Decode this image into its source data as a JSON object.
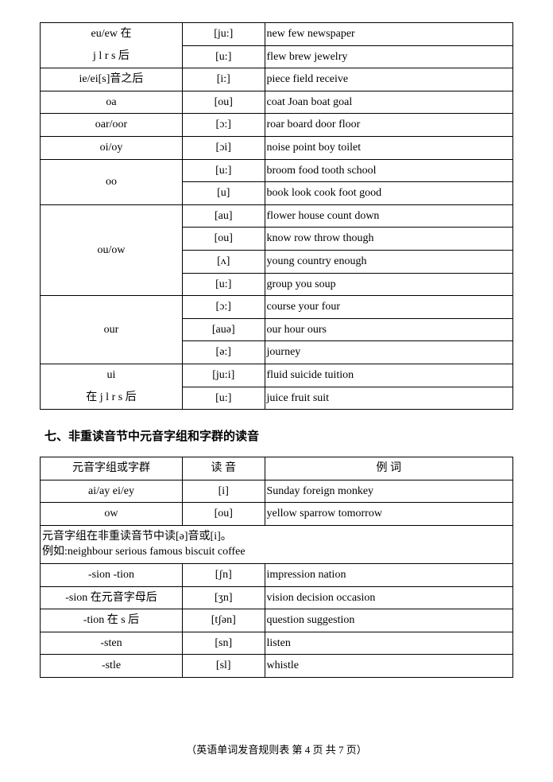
{
  "table1": {
    "rows": [
      {
        "c1": "eu/ew 在",
        "c2": "[ju:]",
        "c3": "new few newspaper",
        "rowspan": 1,
        "group": "a",
        "sub": "1"
      },
      {
        "c1": "j l r s 后",
        "c2": "[u:]",
        "c3": "flew brew jewelry",
        "rowspan": 1,
        "group": "a",
        "sub": "2"
      },
      {
        "c1": "ie/ei[s]音之后",
        "c2": "[i:]",
        "c3": "piece field receive",
        "rowspan": 1
      },
      {
        "c1": "oa",
        "c2": "[ou]",
        "c3": "coat Joan boat goal",
        "rowspan": 1
      },
      {
        "c1": "oar/oor",
        "c2": "[ɔ:]",
        "c3": "roar board door floor",
        "rowspan": 1
      },
      {
        "c1": "oi/oy",
        "c2": "[ɔi]",
        "c3": "noise point boy toilet",
        "rowspan": 1
      },
      {
        "c1": "oo",
        "c2": "[u:]",
        "c3": "broom food tooth school",
        "rowspan": 2
      },
      {
        "c2": "[u]",
        "c3": "book look cook foot good"
      },
      {
        "c1": "ou/ow",
        "c2": "[au]",
        "c3": "flower house count down",
        "rowspan": 4
      },
      {
        "c2": "[ou]",
        "c3": "know row throw though"
      },
      {
        "c2": "[ʌ]",
        "c3": "young country enough"
      },
      {
        "c2": "[u:]",
        "c3": "group you soup"
      },
      {
        "c1": "our",
        "c2": "[ɔ:]",
        "c3": "course your four",
        "rowspan": 3
      },
      {
        "c2": "[auə]",
        "c3": "our hour ours"
      },
      {
        "c2": "[ə:]",
        "c3": "journey"
      },
      {
        "c1": "ui",
        "c2": "[ju:i]",
        "c3": "fluid suicide tuition",
        "rowspan": 1,
        "group": "b",
        "sub": "1"
      },
      {
        "c1": "在 j l r s 后",
        "c2": "[u:]",
        "c3": "juice fruit suit",
        "rowspan": 1,
        "group": "b",
        "sub": "2"
      }
    ]
  },
  "sectionHeading": "七、非重读音节中元音字组和字群的读音",
  "table2": {
    "header": {
      "c1": "元音字组或字群",
      "c2": "读 音",
      "c3": "例 词"
    },
    "rows": [
      {
        "c1": "ai/ay ei/ey",
        "c2": "[i]",
        "c3": "Sunday foreign monkey"
      },
      {
        "c1": "ow",
        "c2": "[ou]",
        "c3": "yellow sparrow tomorrow"
      }
    ],
    "noteLine1": "元音字组在非重读音节中读[ə]音或[i]。",
    "noteLine2": "例如:neighbour serious famous biscuit coffee",
    "rows2": [
      {
        "c1": "-sion -tion",
        "c2": "[ʃn]",
        "c3": "impression nation"
      },
      {
        "c1": "-sion 在元音字母后",
        "c2": "[ʒn]",
        "c3": "vision decision occasion"
      },
      {
        "c1": "-tion 在 s 后",
        "c2": "[tʃən]",
        "c3": "question suggestion"
      },
      {
        "c1": "-sten",
        "c2": "[sn]",
        "c3": "listen"
      },
      {
        "c1": "-stle",
        "c2": "[sl]",
        "c3": "whistle"
      }
    ]
  },
  "footer": "（英语单词发音规则表 第 4 页 共 7 页）"
}
